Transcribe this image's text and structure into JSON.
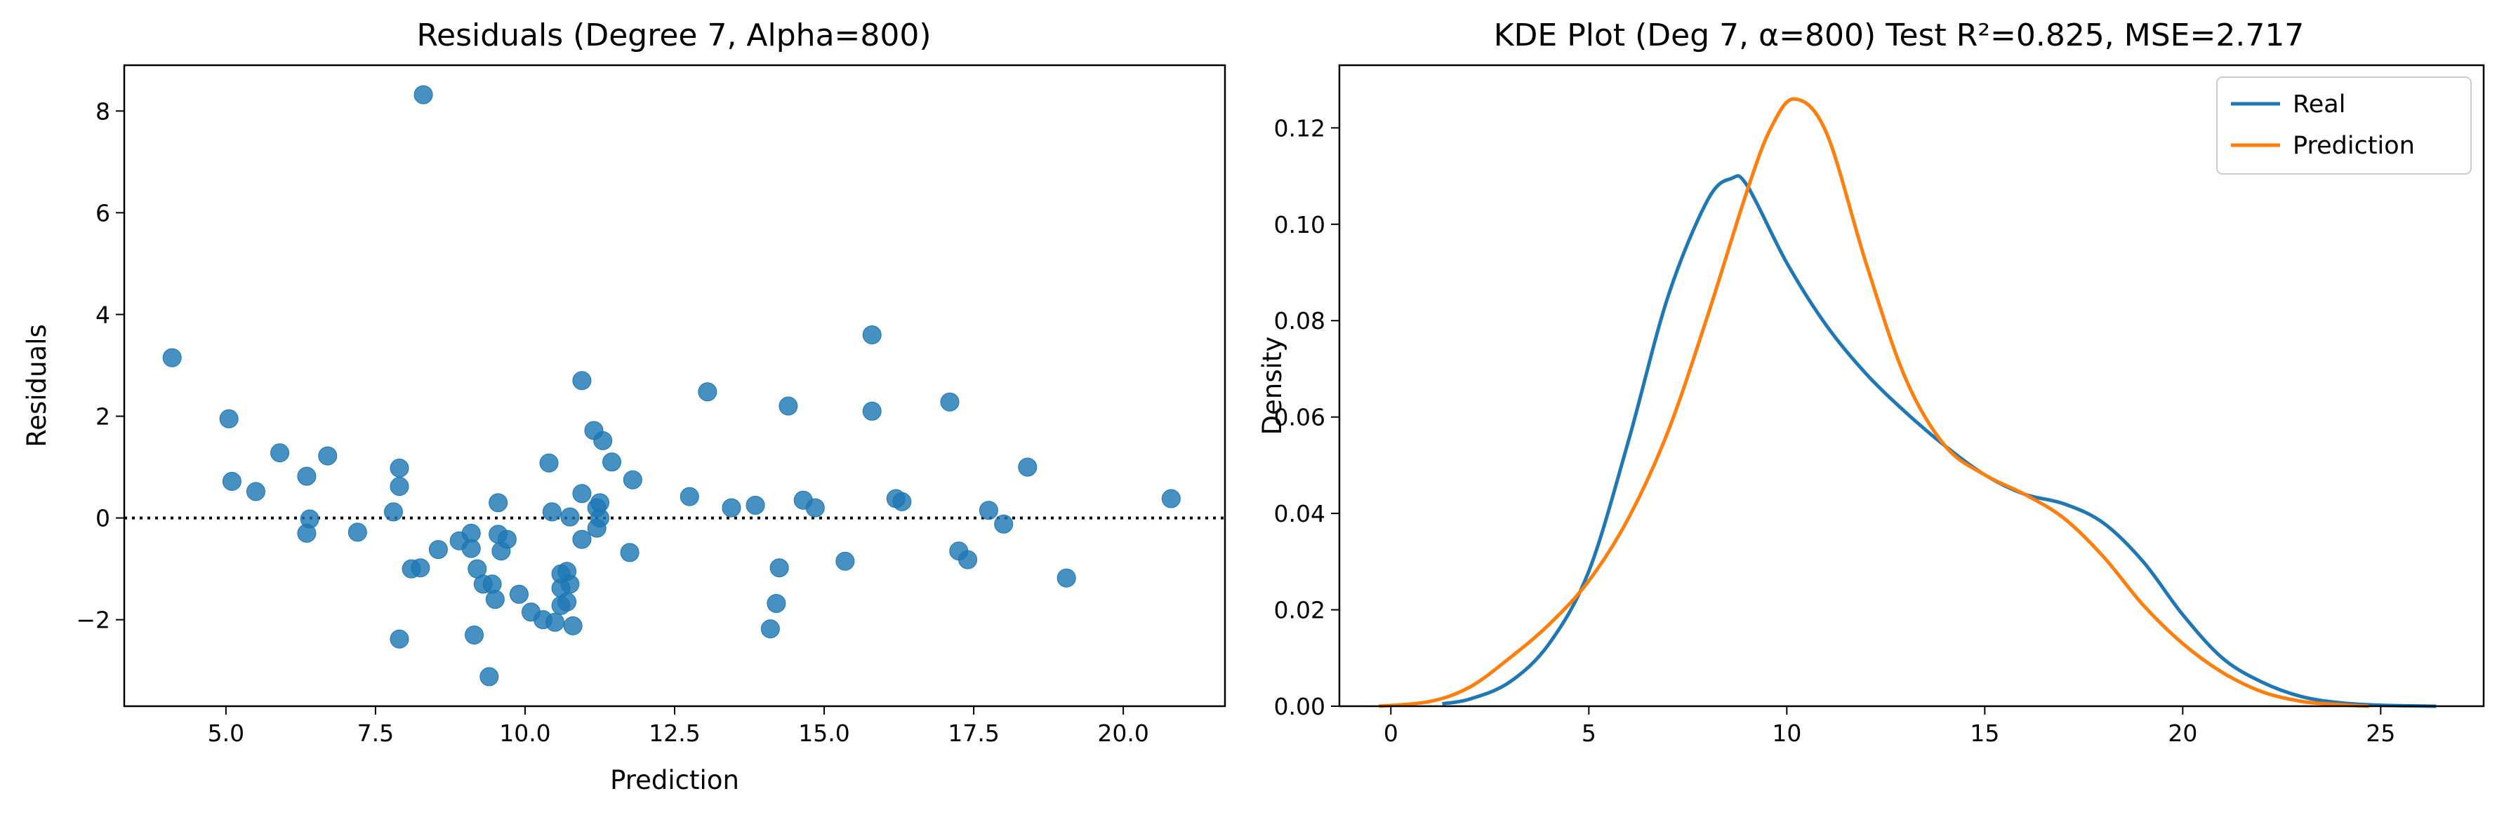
{
  "chart_data": [
    {
      "type": "scatter",
      "title": "Residuals (Degree 7, Alpha=800)",
      "xlabel": "Prediction",
      "ylabel": "Residuals",
      "xlim": [
        3.3,
        21.7
      ],
      "ylim": [
        -3.7,
        8.9
      ],
      "xticks": [
        5.0,
        7.5,
        10.0,
        12.5,
        15.0,
        17.5,
        20.0
      ],
      "xtick_labels": [
        "5.0",
        "7.5",
        "10.0",
        "12.5",
        "15.0",
        "17.5",
        "20.0"
      ],
      "yticks": [
        -2,
        0,
        2,
        4,
        6,
        8
      ],
      "ytick_labels": [
        "−2",
        "0",
        "2",
        "4",
        "6",
        "8"
      ],
      "reference_line": {
        "y": 0,
        "style": "dotted",
        "color": "#000000"
      },
      "point_color": "#1f77b4",
      "grid": false,
      "points": [
        {
          "x": 4.1,
          "y": 3.15
        },
        {
          "x": 5.05,
          "y": 1.95
        },
        {
          "x": 5.1,
          "y": 0.72
        },
        {
          "x": 5.5,
          "y": 0.52
        },
        {
          "x": 5.9,
          "y": 1.28
        },
        {
          "x": 6.35,
          "y": 0.82
        },
        {
          "x": 6.4,
          "y": -0.02
        },
        {
          "x": 6.35,
          "y": -0.3
        },
        {
          "x": 6.7,
          "y": 1.22
        },
        {
          "x": 7.2,
          "y": -0.28
        },
        {
          "x": 7.8,
          "y": 0.12
        },
        {
          "x": 7.9,
          "y": 0.98
        },
        {
          "x": 7.9,
          "y": 0.62
        },
        {
          "x": 7.9,
          "y": -2.38
        },
        {
          "x": 8.1,
          "y": -1.0
        },
        {
          "x": 8.25,
          "y": -0.98
        },
        {
          "x": 8.3,
          "y": 8.32
        },
        {
          "x": 8.55,
          "y": -0.62
        },
        {
          "x": 8.9,
          "y": -0.45
        },
        {
          "x": 9.1,
          "y": -0.3
        },
        {
          "x": 9.1,
          "y": -0.6
        },
        {
          "x": 9.2,
          "y": -1.0
        },
        {
          "x": 9.3,
          "y": -1.3
        },
        {
          "x": 9.15,
          "y": -2.3
        },
        {
          "x": 9.4,
          "y": -3.12
        },
        {
          "x": 9.45,
          "y": -1.3
        },
        {
          "x": 9.5,
          "y": -1.6
        },
        {
          "x": 9.55,
          "y": 0.3
        },
        {
          "x": 9.55,
          "y": -0.32
        },
        {
          "x": 9.6,
          "y": -0.65
        },
        {
          "x": 9.7,
          "y": -0.42
        },
        {
          "x": 9.9,
          "y": -1.5
        },
        {
          "x": 10.1,
          "y": -1.85
        },
        {
          "x": 10.3,
          "y": -2.0
        },
        {
          "x": 10.4,
          "y": 1.08
        },
        {
          "x": 10.45,
          "y": 0.12
        },
        {
          "x": 10.5,
          "y": -2.05
        },
        {
          "x": 10.6,
          "y": -1.1
        },
        {
          "x": 10.6,
          "y": -1.38
        },
        {
          "x": 10.6,
          "y": -1.72
        },
        {
          "x": 10.7,
          "y": -1.05
        },
        {
          "x": 10.7,
          "y": -1.65
        },
        {
          "x": 10.75,
          "y": 0.02
        },
        {
          "x": 10.75,
          "y": -1.3
        },
        {
          "x": 10.8,
          "y": -2.12
        },
        {
          "x": 10.95,
          "y": 2.7
        },
        {
          "x": 10.95,
          "y": 0.48
        },
        {
          "x": 10.95,
          "y": -0.42
        },
        {
          "x": 11.15,
          "y": 1.72
        },
        {
          "x": 11.2,
          "y": 0.2
        },
        {
          "x": 11.2,
          "y": -0.2
        },
        {
          "x": 11.25,
          "y": 0.3
        },
        {
          "x": 11.25,
          "y": 0.0
        },
        {
          "x": 11.3,
          "y": 1.52
        },
        {
          "x": 11.45,
          "y": 1.1
        },
        {
          "x": 11.75,
          "y": -0.68
        },
        {
          "x": 11.8,
          "y": 0.75
        },
        {
          "x": 12.75,
          "y": 0.42
        },
        {
          "x": 13.05,
          "y": 2.48
        },
        {
          "x": 13.45,
          "y": 0.2
        },
        {
          "x": 13.85,
          "y": 0.25
        },
        {
          "x": 14.1,
          "y": -2.18
        },
        {
          "x": 14.2,
          "y": -1.68
        },
        {
          "x": 14.25,
          "y": -0.98
        },
        {
          "x": 14.4,
          "y": 2.2
        },
        {
          "x": 14.65,
          "y": 0.35
        },
        {
          "x": 14.85,
          "y": 0.2
        },
        {
          "x": 15.35,
          "y": -0.85
        },
        {
          "x": 15.8,
          "y": 3.6
        },
        {
          "x": 15.8,
          "y": 2.1
        },
        {
          "x": 16.2,
          "y": 0.38
        },
        {
          "x": 16.3,
          "y": 0.32
        },
        {
          "x": 17.1,
          "y": 2.28
        },
        {
          "x": 17.25,
          "y": -0.65
        },
        {
          "x": 17.4,
          "y": -0.82
        },
        {
          "x": 17.75,
          "y": 0.15
        },
        {
          "x": 18.0,
          "y": -0.12
        },
        {
          "x": 18.4,
          "y": 1.0
        },
        {
          "x": 19.05,
          "y": -1.18
        },
        {
          "x": 20.8,
          "y": 0.38
        }
      ]
    },
    {
      "type": "line",
      "title": "KDE Plot (Deg 7, α=800) Test R²=0.825, MSE=2.717",
      "xlabel": "",
      "ylabel": "Density",
      "xlim": [
        -1.3,
        27.6
      ],
      "ylim": [
        0,
        0.133
      ],
      "xticks": [
        0,
        5,
        10,
        15,
        20,
        25
      ],
      "xtick_labels": [
        "0",
        "5",
        "10",
        "15",
        "20",
        "25"
      ],
      "yticks": [
        0.0,
        0.02,
        0.04,
        0.06,
        0.08,
        0.1,
        0.12
      ],
      "ytick_labels": [
        "0.00",
        "0.02",
        "0.04",
        "0.06",
        "0.08",
        "0.10",
        "0.12"
      ],
      "legend": {
        "position": "top-right"
      },
      "grid": false,
      "series": [
        {
          "name": "Real",
          "color": "#1f77b4",
          "x": [
            1.3,
            2.0,
            3.0,
            4.0,
            5.0,
            6.0,
            7.0,
            8.0,
            8.6,
            9.0,
            10.0,
            11.0,
            12.0,
            13.0,
            14.0,
            15.0,
            16.0,
            17.0,
            18.0,
            19.0,
            20.0,
            21.0,
            22.0,
            23.0,
            24.0,
            25.0,
            26.4
          ],
          "values": [
            0.0005,
            0.0015,
            0.005,
            0.013,
            0.028,
            0.055,
            0.085,
            0.105,
            0.1095,
            0.108,
            0.092,
            0.079,
            0.069,
            0.061,
            0.054,
            0.048,
            0.044,
            0.042,
            0.038,
            0.03,
            0.019,
            0.01,
            0.005,
            0.002,
            0.0007,
            0.0002,
            0.0
          ]
        },
        {
          "name": "Prediction",
          "color": "#ff7f0e",
          "x": [
            -0.3,
            1.0,
            2.0,
            3.0,
            4.0,
            5.0,
            6.0,
            7.0,
            8.0,
            9.0,
            9.6,
            10.2,
            11.0,
            12.0,
            13.0,
            14.0,
            15.0,
            16.0,
            17.0,
            18.0,
            19.0,
            20.0,
            21.0,
            22.0,
            23.0,
            24.0,
            24.7
          ],
          "values": [
            0.0,
            0.001,
            0.004,
            0.01,
            0.017,
            0.026,
            0.039,
            0.057,
            0.081,
            0.107,
            0.12,
            0.126,
            0.119,
            0.092,
            0.068,
            0.054,
            0.048,
            0.044,
            0.039,
            0.031,
            0.021,
            0.013,
            0.007,
            0.003,
            0.001,
            0.0003,
            0.0
          ]
        }
      ]
    }
  ]
}
